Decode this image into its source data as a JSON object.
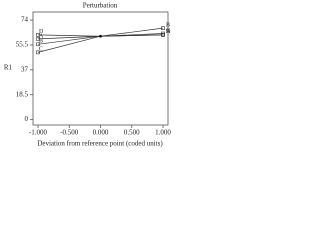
{
  "chart_data": {
    "type": "line",
    "title": "Perturbation",
    "x_label": "Deviation from reference point (coded units)",
    "y_label": "R1",
    "x": [
      -1,
      0,
      1
    ],
    "series": [
      {
        "name": "A",
        "color": "#333333",
        "values": [
          60,
          62,
          63
        ]
      },
      {
        "name": "B",
        "color": "#333333",
        "values": [
          56,
          62,
          68
        ]
      },
      {
        "name": "C",
        "color": "#333333",
        "values": [
          50,
          62,
          64
        ]
      },
      {
        "name": "D",
        "color": "#333333",
        "values": [
          63,
          62,
          63
        ]
      }
    ],
    "xlim": [
      -1.08,
      1.08
    ],
    "xticks": [
      {
        "value": -1,
        "label": "-1.000"
      },
      {
        "value": -0.5,
        "label": "-0.500"
      },
      {
        "value": 0,
        "label": "0.000"
      },
      {
        "value": 0.5,
        "label": "0.500"
      },
      {
        "value": 1,
        "label": "1.000"
      }
    ],
    "ylim": [
      -4,
      80
    ],
    "yticks": [
      0,
      18.5,
      37,
      55.5,
      74
    ]
  }
}
